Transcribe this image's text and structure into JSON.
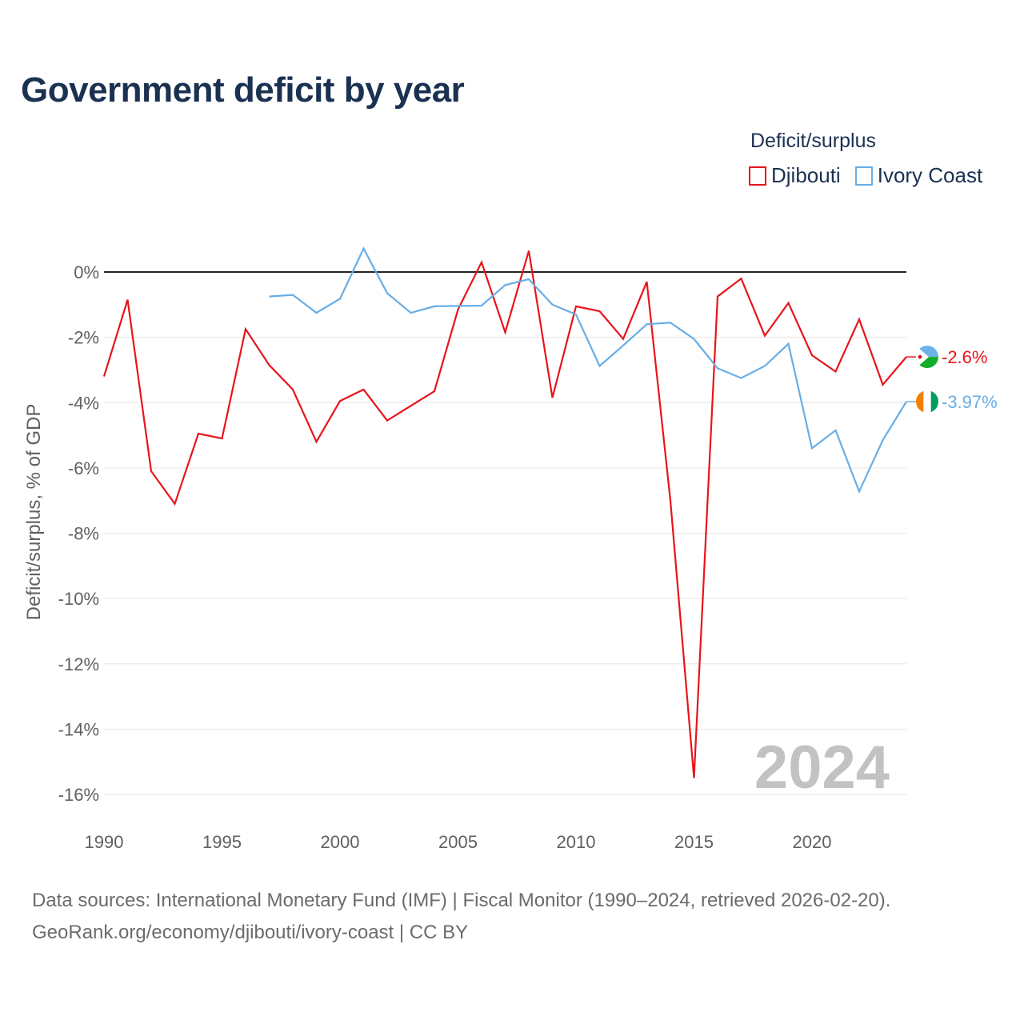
{
  "title": "Government deficit by year",
  "legend": {
    "title": "Deficit/surplus",
    "items": [
      {
        "label": "Djibouti",
        "color": "#e8141b"
      },
      {
        "label": "Ivory Coast",
        "color": "#68aee6"
      }
    ]
  },
  "source": {
    "line1": "Data sources: International Monetary Fund (IMF) | Fiscal Monitor (1990–2024, retrieved 2026-02-20).",
    "line2": "GeoRank.org/economy/djibouti/ivory-coast | CC BY"
  },
  "chart_data": {
    "type": "line",
    "title": "Government deficit by year",
    "xlabel": "",
    "ylabel": "Deficit/surplus, % of GDP",
    "xlim": [
      1990,
      2024
    ],
    "ylim": [
      -16,
      0
    ],
    "x_ticks": [
      1990,
      1995,
      2000,
      2005,
      2010,
      2015,
      2020
    ],
    "y_ticks": [
      0,
      -2,
      -4,
      -6,
      -8,
      -10,
      -12,
      -14,
      -16
    ],
    "y_tick_labels": [
      "0%",
      "-2%",
      "-4%",
      "-6%",
      "-8%",
      "-10%",
      "-12%",
      "-14%",
      "-16%"
    ],
    "year_watermark": "2024",
    "series": [
      {
        "name": "Djibouti",
        "color": "#e8141b",
        "end_label": "-2.6%",
        "x": [
          1990,
          1991,
          1992,
          1993,
          1994,
          1995,
          1996,
          1997,
          1998,
          1999,
          2000,
          2001,
          2002,
          2003,
          2004,
          2005,
          2006,
          2007,
          2008,
          2009,
          2010,
          2011,
          2012,
          2013,
          2014,
          2015,
          2016,
          2017,
          2018,
          2019,
          2020,
          2021,
          2022,
          2023,
          2024
        ],
        "values": [
          -3.2,
          -0.85,
          -6.1,
          -7.1,
          -4.95,
          -5.1,
          -1.75,
          -2.85,
          -3.6,
          -5.2,
          -3.95,
          -3.6,
          -4.55,
          -4.1,
          -3.65,
          -1.15,
          0.3,
          -1.85,
          0.65,
          -3.85,
          -1.05,
          -1.2,
          -2.05,
          -0.3,
          -7.0,
          -15.5,
          -0.75,
          -0.2,
          -1.95,
          -0.95,
          -2.55,
          -3.05,
          -1.45,
          -3.45,
          -2.6
        ]
      },
      {
        "name": "Ivory Coast",
        "color": "#68aee6",
        "end_label": "-3.97%",
        "x": [
          1997,
          1998,
          1999,
          2000,
          2001,
          2002,
          2003,
          2004,
          2005,
          2006,
          2007,
          2008,
          2009,
          2010,
          2011,
          2012,
          2013,
          2014,
          2015,
          2016,
          2017,
          2018,
          2019,
          2020,
          2021,
          2022,
          2023,
          2024
        ],
        "values": [
          -0.75,
          -0.7,
          -1.25,
          -0.82,
          0.72,
          -0.65,
          -1.25,
          -1.05,
          -1.04,
          -1.03,
          -0.4,
          -0.22,
          -1.0,
          -1.3,
          -2.88,
          -2.25,
          -1.6,
          -1.55,
          -2.05,
          -2.95,
          -3.25,
          -2.88,
          -2.2,
          -5.4,
          -4.85,
          -6.72,
          -5.15,
          -3.97
        ]
      }
    ]
  }
}
